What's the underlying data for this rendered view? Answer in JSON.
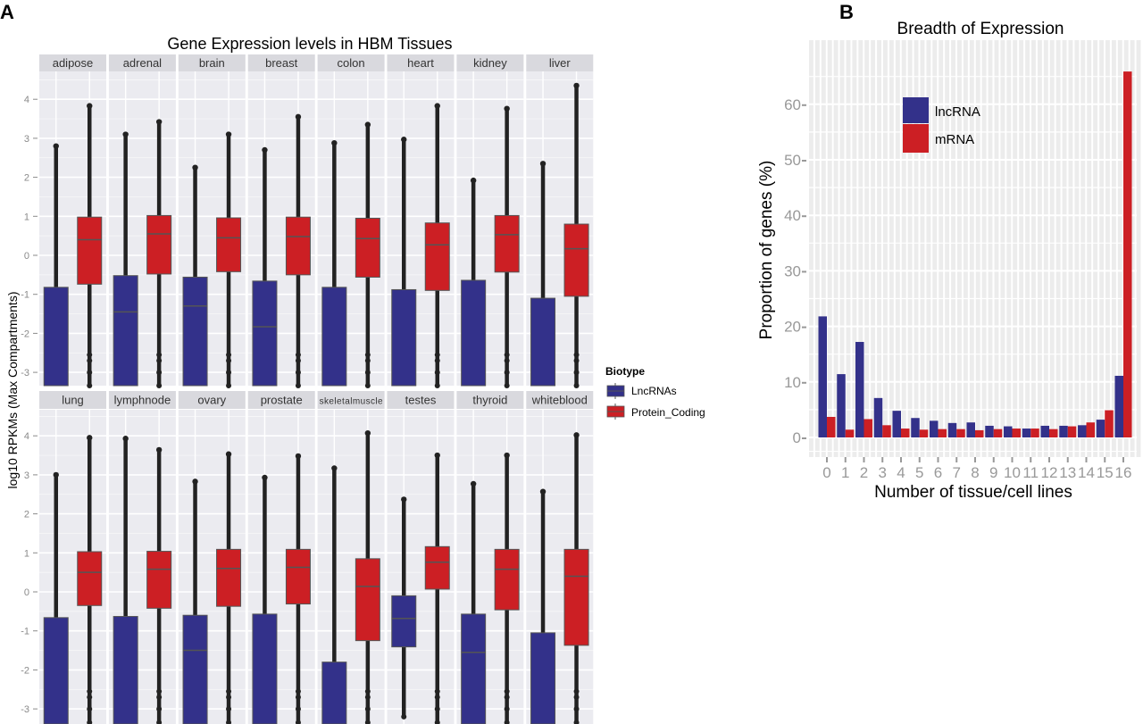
{
  "figure": {
    "panel_a_letter": "A",
    "panel_b_letter": "B"
  },
  "colors": {
    "lncrna": "#33318a",
    "mrna": "#cc1f24",
    "panel_bg": "#ebebf0",
    "strip_bg": "#d9d9de",
    "b_panel_bg": "#ececec"
  },
  "chart_data": [
    {
      "type": "boxplot",
      "title": "Gene Expression levels in HBM Tissues",
      "xlabel": "",
      "ylabel": "log10 RPKMs (Max Compartments)",
      "ylim": [
        -3.4,
        4.8
      ],
      "yticks": [
        "4",
        "3",
        "2",
        "1",
        "0",
        "-1",
        "-2",
        "-3"
      ],
      "ytick_values": [
        4,
        3,
        2,
        1,
        0,
        -1,
        -2,
        -3
      ],
      "legend": {
        "title": "Biotype",
        "position": "right",
        "entries": [
          "LncRNAs",
          "Protein_Coding"
        ]
      },
      "facets": [
        {
          "tissue": "adipose",
          "lnc": {
            "q1": -3.4,
            "median": -3.4,
            "q3": -0.82,
            "whisker_max": 2.8,
            "max_outlier": 2.8
          },
          "pc": {
            "q1": -0.74,
            "median": 0.4,
            "q3": 0.98,
            "whisker_max": 3.45,
            "max_outlier": 3.83,
            "min_outlier": -3.35
          }
        },
        {
          "tissue": "adrenal",
          "lnc": {
            "q1": -3.4,
            "median": -1.45,
            "q3": -0.52,
            "whisker_max": 3.1,
            "max_outlier": 3.1
          },
          "pc": {
            "q1": -0.48,
            "median": 0.55,
            "q3": 1.02,
            "whisker_max": 3.3,
            "max_outlier": 3.42,
            "min_outlier": -3.35
          }
        },
        {
          "tissue": "brain",
          "lnc": {
            "q1": -3.4,
            "median": -1.3,
            "q3": -0.56,
            "whisker_max": 2.25,
            "max_outlier": 2.25
          },
          "pc": {
            "q1": -0.42,
            "median": 0.45,
            "q3": 0.96,
            "whisker_max": 3.0,
            "max_outlier": 3.1,
            "min_outlier": -3.35
          }
        },
        {
          "tissue": "breast",
          "lnc": {
            "q1": -3.4,
            "median": -1.83,
            "q3": -0.66,
            "whisker_max": 2.7,
            "max_outlier": 2.7
          },
          "pc": {
            "q1": -0.5,
            "median": 0.48,
            "q3": 0.98,
            "whisker_max": 3.1,
            "max_outlier": 3.55,
            "min_outlier": -3.35
          }
        },
        {
          "tissue": "colon",
          "lnc": {
            "q1": -3.4,
            "median": -3.4,
            "q3": -0.82,
            "whisker_max": 2.88,
            "max_outlier": 2.88
          },
          "pc": {
            "q1": -0.56,
            "median": 0.43,
            "q3": 0.95,
            "whisker_max": 3.3,
            "max_outlier": 3.35,
            "min_outlier": -3.35
          }
        },
        {
          "tissue": "heart",
          "lnc": {
            "q1": -3.4,
            "median": -3.4,
            "q3": -0.88,
            "whisker_max": 2.97,
            "max_outlier": 2.97
          },
          "pc": {
            "q1": -0.9,
            "median": 0.27,
            "q3": 0.83,
            "whisker_max": 3.4,
            "max_outlier": 3.83,
            "min_outlier": -3.35
          }
        },
        {
          "tissue": "kidney",
          "lnc": {
            "q1": -3.4,
            "median": -3.4,
            "q3": -0.64,
            "whisker_max": 1.92,
            "max_outlier": 1.92
          },
          "pc": {
            "q1": -0.43,
            "median": 0.53,
            "q3": 1.02,
            "whisker_max": 3.2,
            "max_outlier": 3.76,
            "min_outlier": -3.35
          }
        },
        {
          "tissue": "liver",
          "lnc": {
            "q1": -3.4,
            "median": -3.4,
            "q3": -1.1,
            "whisker_max": 2.35,
            "max_outlier": 2.35
          },
          "pc": {
            "q1": -1.05,
            "median": 0.17,
            "q3": 0.8,
            "whisker_max": 3.7,
            "max_outlier": 4.35,
            "min_outlier": -3.35
          }
        },
        {
          "tissue": "lung",
          "lnc": {
            "q1": -3.4,
            "median": -3.4,
            "q3": -0.66,
            "whisker_max": 3.0,
            "max_outlier": 3.0
          },
          "pc": {
            "q1": -0.35,
            "median": 0.5,
            "q3": 1.03,
            "whisker_max": 3.3,
            "max_outlier": 3.95,
            "min_outlier": -3.35
          }
        },
        {
          "tissue": "lymphnode",
          "lnc": {
            "q1": -3.4,
            "median": -3.4,
            "q3": -0.63,
            "whisker_max": 3.93,
            "max_outlier": 3.93
          },
          "pc": {
            "q1": -0.42,
            "median": 0.58,
            "q3": 1.04,
            "whisker_max": 3.3,
            "max_outlier": 3.64,
            "min_outlier": -3.35
          }
        },
        {
          "tissue": "ovary",
          "lnc": {
            "q1": -3.4,
            "median": -1.5,
            "q3": -0.6,
            "whisker_max": 2.83,
            "max_outlier": 2.83
          },
          "pc": {
            "q1": -0.37,
            "median": 0.6,
            "q3": 1.09,
            "whisker_max": 3.3,
            "max_outlier": 3.53,
            "min_outlier": -3.35
          }
        },
        {
          "tissue": "prostate",
          "lnc": {
            "q1": -3.4,
            "median": -3.4,
            "q3": -0.57,
            "whisker_max": 2.93,
            "max_outlier": 2.93
          },
          "pc": {
            "q1": -0.31,
            "median": 0.63,
            "q3": 1.09,
            "whisker_max": 3.4,
            "max_outlier": 3.48,
            "min_outlier": -3.35
          }
        },
        {
          "tissue": "skeletalmuscle",
          "lnc": {
            "q1": -3.4,
            "median": -3.4,
            "q3": -1.8,
            "whisker_max": 3.17,
            "max_outlier": 3.17
          },
          "pc": {
            "q1": -1.25,
            "median": 0.14,
            "q3": 0.85,
            "whisker_max": 3.4,
            "max_outlier": 4.07,
            "min_outlier": -3.35
          }
        },
        {
          "tissue": "testes",
          "lnc": {
            "q1": -1.41,
            "median": -0.68,
            "q3": -0.1,
            "whisker_max": 2.37,
            "max_outlier": 2.37
          },
          "pc": {
            "q1": 0.07,
            "median": 0.76,
            "q3": 1.16,
            "whisker_max": 3.2,
            "max_outlier": 3.5,
            "min_outlier": -3.35
          }
        },
        {
          "tissue": "thyroid",
          "lnc": {
            "q1": -3.4,
            "median": -1.55,
            "q3": -0.57,
            "whisker_max": 2.77,
            "max_outlier": 2.77
          },
          "pc": {
            "q1": -0.46,
            "median": 0.58,
            "q3": 1.09,
            "whisker_max": 3.0,
            "max_outlier": 3.5,
            "min_outlier": -3.35
          }
        },
        {
          "tissue": "whiteblood",
          "lnc": {
            "q1": -3.4,
            "median": -3.4,
            "q3": -1.05,
            "whisker_max": 2.57,
            "max_outlier": 2.57
          },
          "pc": {
            "q1": -1.37,
            "median": 0.4,
            "q3": 1.09,
            "whisker_max": 3.3,
            "max_outlier": 4.02,
            "min_outlier": -3.35
          }
        }
      ]
    },
    {
      "type": "bar",
      "title": "Breadth of Expression",
      "xlabel": "Number of tissue/cell lines",
      "ylabel": "Proportion of genes (%)",
      "ylim": [
        -3.5,
        70
      ],
      "yticks": [
        0,
        10,
        20,
        30,
        40,
        50,
        60
      ],
      "grid": true,
      "legend": {
        "position": "top-left",
        "entries": [
          "lncRNA",
          "mRNA"
        ]
      },
      "categories": [
        "0",
        "1",
        "2",
        "3",
        "4",
        "5",
        "6",
        "7",
        "8",
        "9",
        "10",
        "11",
        "12",
        "13",
        "14",
        "15",
        "16"
      ],
      "series": [
        {
          "name": "lncRNA",
          "values": [
            21.8,
            11.4,
            17.2,
            7.1,
            4.8,
            3.5,
            3.0,
            2.6,
            2.7,
            2.1,
            2.0,
            1.6,
            2.1,
            2.1,
            2.2,
            3.2,
            11.1
          ]
        },
        {
          "name": "mRNA",
          "values": [
            3.7,
            1.4,
            3.3,
            2.2,
            1.6,
            1.4,
            1.5,
            1.5,
            1.3,
            1.5,
            1.6,
            1.6,
            1.5,
            2.0,
            2.7,
            4.9,
            65.9
          ]
        }
      ]
    }
  ]
}
